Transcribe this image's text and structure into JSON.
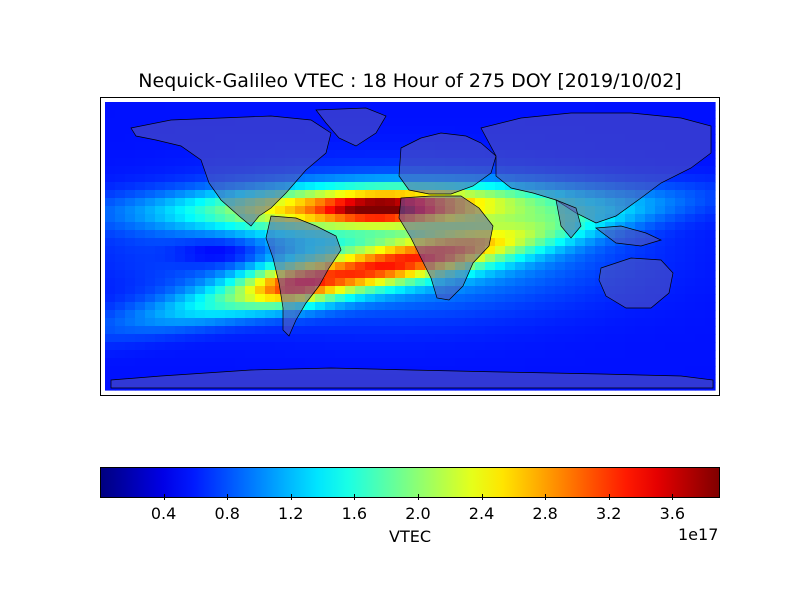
{
  "title": "Nequick-Galileo VTEC : 18 Hour of 275 DOY [2019/10/02]",
  "colorbar": {
    "label": "VTEC",
    "multiplier": "1e17",
    "ticks": [
      "0.4",
      "0.8",
      "1.2",
      "1.6",
      "2.0",
      "2.4",
      "2.8",
      "3.2",
      "3.6"
    ],
    "range": [
      0.0,
      3.9
    ],
    "colormap": "jet"
  },
  "map": {
    "projection": "equirectangular",
    "field": "VTEC",
    "units_multiplier": "1e17"
  },
  "colors": {
    "land_overlay": "#5a5ab4",
    "coastline": "#000000"
  }
}
